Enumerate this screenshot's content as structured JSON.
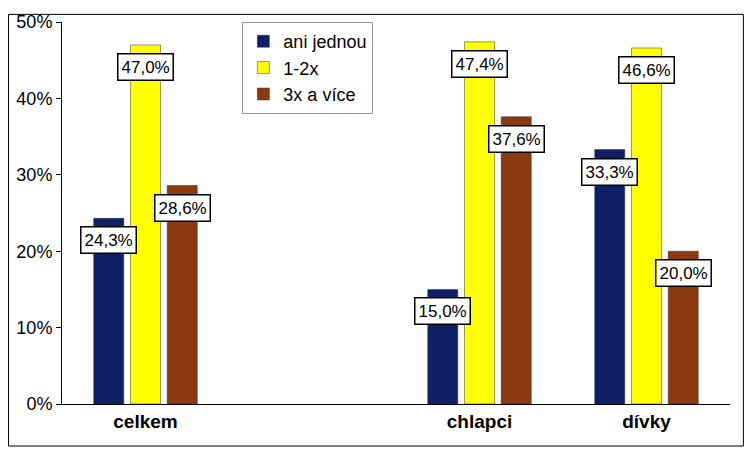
{
  "chart_data": {
    "type": "bar",
    "categories": [
      "celkem",
      null,
      "chlapci",
      "dívky"
    ],
    "series": [
      {
        "name": "ani jednou",
        "color": "#0f1f66",
        "values": [
          24.3,
          null,
          15.0,
          33.3
        ],
        "value_labels": [
          "24,3%",
          null,
          "15,0%",
          "33,3%"
        ]
      },
      {
        "name": "1-2x",
        "color": "#ffff00",
        "values": [
          47.0,
          null,
          47.4,
          46.6
        ],
        "value_labels": [
          "47,0%",
          null,
          "47,4%",
          "46,6%"
        ]
      },
      {
        "name": "3x a více",
        "color": "#8b3a10",
        "values": [
          28.6,
          null,
          37.6,
          20.0
        ],
        "value_labels": [
          "28,6%",
          null,
          "37,6%",
          "20,0%"
        ]
      }
    ],
    "ylim": [
      0,
      50
    ],
    "yticks": [
      {
        "value": 0,
        "label": "0%"
      },
      {
        "value": 10,
        "label": "10%"
      },
      {
        "value": 20,
        "label": "20%"
      },
      {
        "value": 30,
        "label": "30%"
      },
      {
        "value": 40,
        "label": "40%"
      },
      {
        "value": 50,
        "label": "50%"
      }
    ],
    "grid": false,
    "legend": "top",
    "data_labels": true
  }
}
